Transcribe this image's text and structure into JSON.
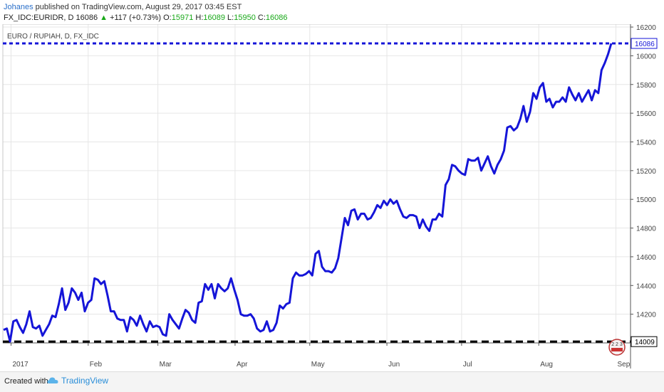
{
  "header": {
    "author": "Johanes",
    "published_text": "published on TradingView.com, August 29, 2017 03:45 EST",
    "symbol": "FX_IDC:EURIDR, D",
    "last": "16086",
    "change": "+117 (+0.73%)",
    "open_label": "O:",
    "open": "15971",
    "high_label": "H:",
    "high": "16089",
    "low_label": "L:",
    "low": "15950",
    "close_label": "C:",
    "close": "16086"
  },
  "footer": {
    "created_with": "Created with",
    "brand": "TradingView"
  },
  "colors": {
    "series": "#1515d8",
    "current_line": "#1515d8",
    "support_line": "#000000",
    "grid": "#e6e6e6",
    "up": "#18a818"
  },
  "chart_data": {
    "type": "line",
    "title": "EURO / RUPIAH, D, FX_IDC",
    "xlabel": "",
    "ylabel": "",
    "ylim": [
      14000,
      16220
    ],
    "y_ticks": [
      14200,
      14400,
      14600,
      14800,
      15000,
      15200,
      15400,
      15600,
      15800,
      16000,
      16200
    ],
    "x_ticks": [
      "2017",
      "Feb",
      "Mar",
      "Apr",
      "May",
      "Jun",
      "Jul",
      "Aug",
      "Sep"
    ],
    "grid": true,
    "last_price_label": "16086",
    "support_label": "14009",
    "current_level": 16086,
    "support_level": 14009,
    "x_start": "2016-12-29",
    "series": [
      {
        "values": [
          14090,
          14100,
          14010,
          14150,
          14160,
          14110,
          14070,
          14130,
          14220,
          14110,
          14100,
          14120,
          14050,
          14090,
          14130,
          14190,
          14180,
          14270,
          14380,
          14230,
          14280,
          14380,
          14350,
          14300,
          14350,
          14220,
          14280,
          14300,
          14450,
          14440,
          14410,
          14430,
          14330,
          14220,
          14220,
          14170,
          14160,
          14160,
          14080,
          14180,
          14160,
          14120,
          14190,
          14130,
          14080,
          14150,
          14110,
          14120,
          14110,
          14060,
          14050,
          14200,
          14160,
          14130,
          14100,
          14170,
          14230,
          14210,
          14160,
          14140,
          14280,
          14290,
          14410,
          14370,
          14410,
          14310,
          14410,
          14380,
          14360,
          14380,
          14450,
          14370,
          14300,
          14200,
          14190,
          14190,
          14200,
          14170,
          14100,
          14080,
          14090,
          14150,
          14080,
          14090,
          14140,
          14260,
          14240,
          14270,
          14280,
          14450,
          14490,
          14470,
          14470,
          14480,
          14500,
          14470,
          14620,
          14640,
          14530,
          14500,
          14500,
          14490,
          14520,
          14590,
          14730,
          14870,
          14820,
          14920,
          14930,
          14860,
          14900,
          14900,
          14860,
          14870,
          14910,
          14960,
          14940,
          14990,
          14960,
          15000,
          14970,
          14990,
          14930,
          14880,
          14870,
          14890,
          14890,
          14880,
          14800,
          14860,
          14810,
          14780,
          14860,
          14860,
          14900,
          14880,
          15100,
          15140,
          15240,
          15230,
          15200,
          15180,
          15170,
          15280,
          15270,
          15270,
          15290,
          15200,
          15250,
          15300,
          15230,
          15180,
          15240,
          15280,
          15340,
          15500,
          15510,
          15480,
          15500,
          15560,
          15650,
          15540,
          15610,
          15740,
          15700,
          15780,
          15810,
          15680,
          15700,
          15640,
          15680,
          15680,
          15710,
          15680,
          15780,
          15730,
          15690,
          15740,
          15680,
          15720,
          15760,
          15690,
          15760,
          15740,
          15900,
          15950,
          16010,
          16086
        ]
      }
    ]
  }
}
